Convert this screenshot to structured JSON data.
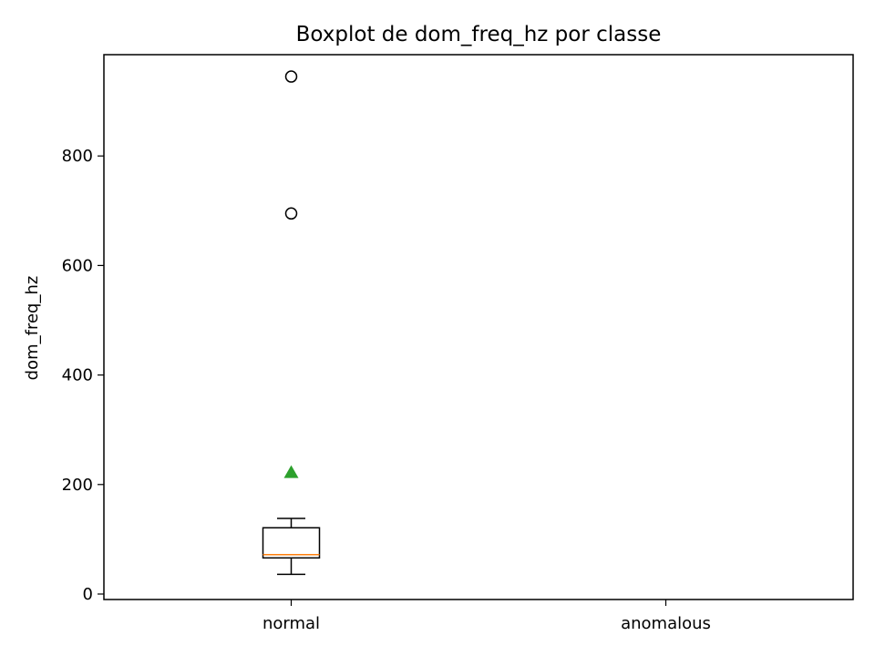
{
  "chart_data": {
    "type": "box",
    "title": "Boxplot de dom_freq_hz por classe",
    "xlabel": "",
    "ylabel": "dom_freq_hz",
    "categories": [
      "normal",
      "anomalous"
    ],
    "ylim": [
      -10,
      985
    ],
    "yticks": [
      0,
      200,
      400,
      600,
      800
    ],
    "grid": false,
    "boxes": [
      {
        "category": "normal",
        "whisker_low": 36,
        "q1": 66,
        "median": 72,
        "q3": 121,
        "whisker_high": 138,
        "mean": 222,
        "outliers": [
          695,
          945
        ]
      }
    ],
    "colors": {
      "box": "#000000",
      "median": "#ff7f0e",
      "mean": "#2ca02c",
      "outlier": "#000000"
    }
  }
}
